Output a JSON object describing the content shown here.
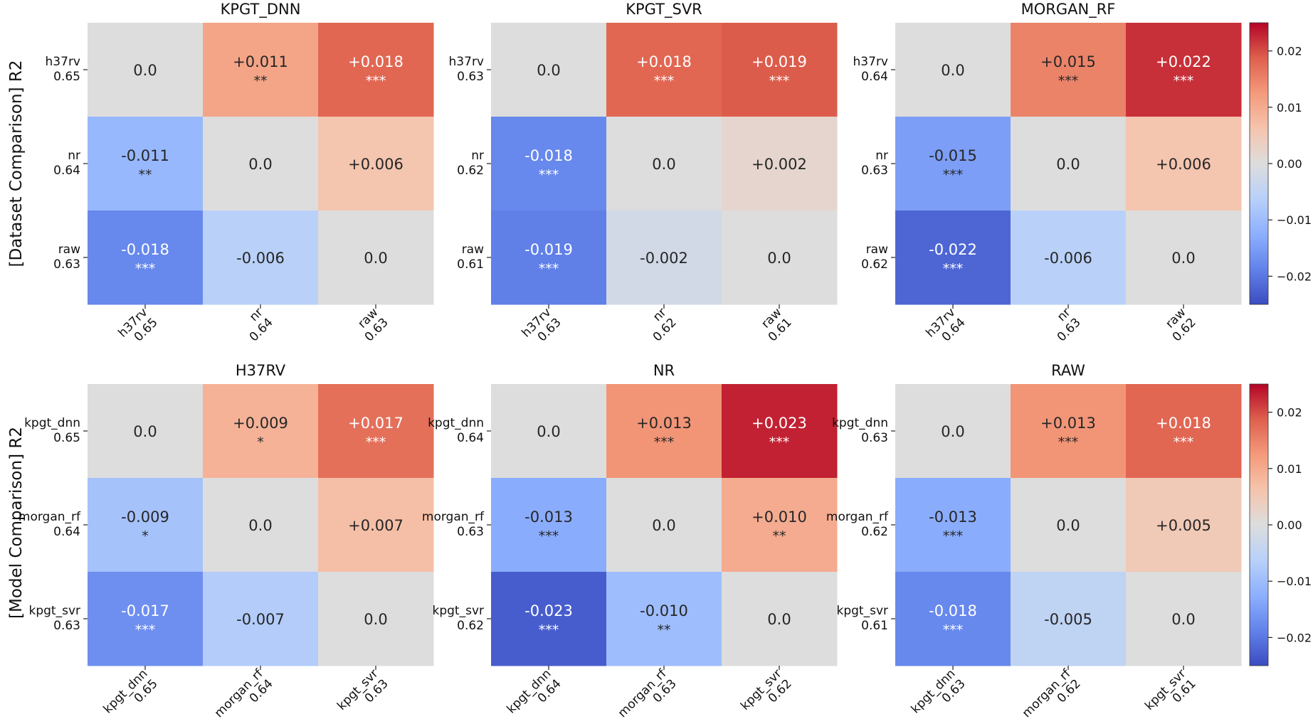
{
  "figure": {
    "row_labels": [
      "[Dataset Comparison] R2",
      "[Model Comparison] R2"
    ]
  },
  "colorbar": {
    "vmin": -0.025,
    "vmax": 0.025,
    "ticks": [
      0.02,
      0.01,
      0.0,
      -0.01,
      -0.02
    ],
    "tick_labels": [
      "0.02",
      "0.01",
      "0.00",
      "−0.01",
      "−0.02"
    ],
    "colormap": "coolwarm"
  },
  "chart_data": [
    {
      "type": "heatmap",
      "title": "KPGT_DNN",
      "rows": [
        "h37rv",
        "nr",
        "raw"
      ],
      "row_scores": [
        "0.65",
        "0.64",
        "0.63"
      ],
      "cols": [
        "h37rv",
        "nr",
        "raw"
      ],
      "col_scores": [
        "0.65",
        "0.64",
        "0.63"
      ],
      "values": [
        [
          0.0,
          0.011,
          0.018
        ],
        [
          -0.011,
          0.0,
          0.006
        ],
        [
          -0.018,
          -0.006,
          0.0
        ]
      ],
      "labels": [
        [
          "0.0",
          "+0.011",
          "+0.018"
        ],
        [
          "-0.011",
          "0.0",
          "+0.006"
        ],
        [
          "-0.018",
          "-0.006",
          "0.0"
        ]
      ],
      "stars": [
        [
          "",
          "**",
          "***"
        ],
        [
          "**",
          "",
          ""
        ],
        [
          "***",
          "",
          ""
        ]
      ]
    },
    {
      "type": "heatmap",
      "title": "KPGT_SVR",
      "rows": [
        "h37rv",
        "nr",
        "raw"
      ],
      "row_scores": [
        "0.63",
        "0.62",
        "0.61"
      ],
      "cols": [
        "h37rv",
        "nr",
        "raw"
      ],
      "col_scores": [
        "0.63",
        "0.62",
        "0.61"
      ],
      "values": [
        [
          0.0,
          0.018,
          0.019
        ],
        [
          -0.018,
          0.0,
          0.002
        ],
        [
          -0.019,
          -0.002,
          0.0
        ]
      ],
      "labels": [
        [
          "0.0",
          "+0.018",
          "+0.019"
        ],
        [
          "-0.018",
          "0.0",
          "+0.002"
        ],
        [
          "-0.019",
          "-0.002",
          "0.0"
        ]
      ],
      "stars": [
        [
          "",
          "***",
          "***"
        ],
        [
          "***",
          "",
          ""
        ],
        [
          "***",
          "",
          ""
        ]
      ]
    },
    {
      "type": "heatmap",
      "title": "MORGAN_RF",
      "rows": [
        "h37rv",
        "nr",
        "raw"
      ],
      "row_scores": [
        "0.64",
        "0.63",
        "0.62"
      ],
      "cols": [
        "h37rv",
        "nr",
        "raw"
      ],
      "col_scores": [
        "0.64",
        "0.63",
        "0.62"
      ],
      "values": [
        [
          0.0,
          0.015,
          0.022
        ],
        [
          -0.015,
          0.0,
          0.006
        ],
        [
          -0.022,
          -0.006,
          0.0
        ]
      ],
      "labels": [
        [
          "0.0",
          "+0.015",
          "+0.022"
        ],
        [
          "-0.015",
          "0.0",
          "+0.006"
        ],
        [
          "-0.022",
          "-0.006",
          "0.0"
        ]
      ],
      "stars": [
        [
          "",
          "***",
          "***"
        ],
        [
          "***",
          "",
          ""
        ],
        [
          "***",
          "",
          ""
        ]
      ]
    },
    {
      "type": "heatmap",
      "title": "H37RV",
      "rows": [
        "kpgt_dnn",
        "morgan_rf",
        "kpgt_svr"
      ],
      "row_scores": [
        "0.65",
        "0.64",
        "0.63"
      ],
      "cols": [
        "kpgt_dnn",
        "morgan_rf",
        "kpgt_svr"
      ],
      "col_scores": [
        "0.65",
        "0.64",
        "0.63"
      ],
      "values": [
        [
          0.0,
          0.009,
          0.017
        ],
        [
          -0.009,
          0.0,
          0.007
        ],
        [
          -0.017,
          -0.007,
          0.0
        ]
      ],
      "labels": [
        [
          "0.0",
          "+0.009",
          "+0.017"
        ],
        [
          "-0.009",
          "0.0",
          "+0.007"
        ],
        [
          "-0.017",
          "-0.007",
          "0.0"
        ]
      ],
      "stars": [
        [
          "",
          "*",
          "***"
        ],
        [
          "*",
          "",
          ""
        ],
        [
          "***",
          "",
          ""
        ]
      ]
    },
    {
      "type": "heatmap",
      "title": "NR",
      "rows": [
        "kpgt_dnn",
        "morgan_rf",
        "kpgt_svr"
      ],
      "row_scores": [
        "0.64",
        "0.63",
        "0.62"
      ],
      "cols": [
        "kpgt_dnn",
        "morgan_rf",
        "kpgt_svr"
      ],
      "col_scores": [
        "0.64",
        "0.63",
        "0.62"
      ],
      "values": [
        [
          0.0,
          0.013,
          0.023
        ],
        [
          -0.013,
          0.0,
          0.01
        ],
        [
          -0.023,
          -0.01,
          0.0
        ]
      ],
      "labels": [
        [
          "0.0",
          "+0.013",
          "+0.023"
        ],
        [
          "-0.013",
          "0.0",
          "+0.010"
        ],
        [
          "-0.023",
          "-0.010",
          "0.0"
        ]
      ],
      "stars": [
        [
          "",
          "***",
          "***"
        ],
        [
          "***",
          "",
          "**"
        ],
        [
          "***",
          "**",
          ""
        ]
      ]
    },
    {
      "type": "heatmap",
      "title": "RAW",
      "rows": [
        "kpgt_dnn",
        "morgan_rf",
        "kpgt_svr"
      ],
      "row_scores": [
        "0.63",
        "0.62",
        "0.61"
      ],
      "cols": [
        "kpgt_dnn",
        "morgan_rf",
        "kpgt_svr"
      ],
      "col_scores": [
        "0.63",
        "0.62",
        "0.61"
      ],
      "values": [
        [
          0.0,
          0.013,
          0.018
        ],
        [
          -0.013,
          0.0,
          0.005
        ],
        [
          -0.018,
          -0.005,
          0.0
        ]
      ],
      "labels": [
        [
          "0.0",
          "+0.013",
          "+0.018"
        ],
        [
          "-0.013",
          "0.0",
          "+0.005"
        ],
        [
          "-0.018",
          "-0.005",
          "0.0"
        ]
      ],
      "stars": [
        [
          "",
          "***",
          "***"
        ],
        [
          "***",
          "",
          ""
        ],
        [
          "***",
          "",
          ""
        ]
      ]
    }
  ]
}
